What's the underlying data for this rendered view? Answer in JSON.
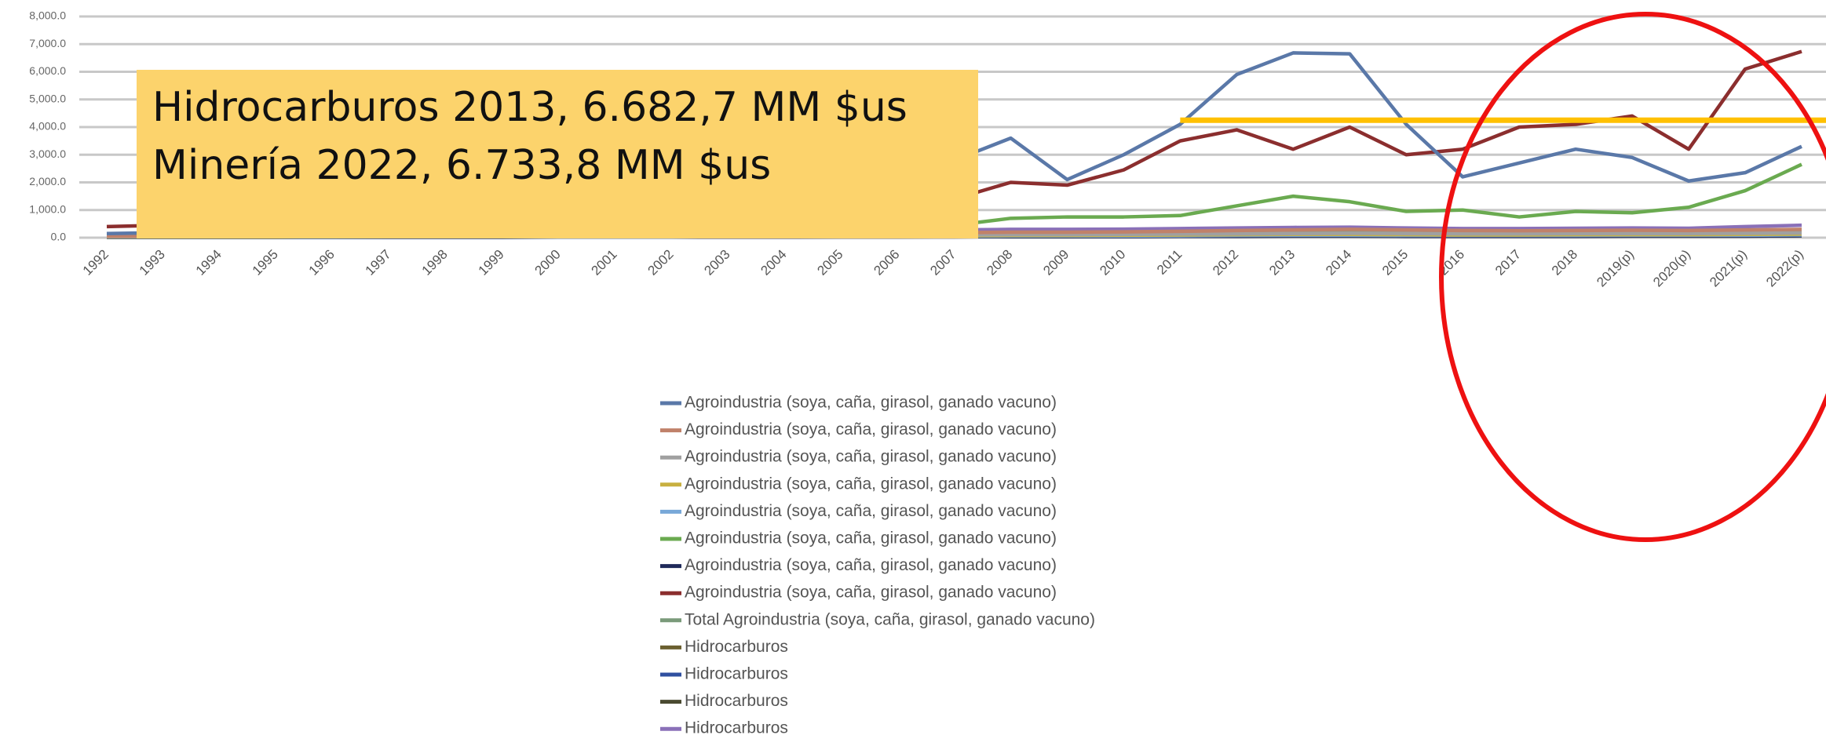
{
  "chart_data": {
    "type": "line",
    "annotations": [
      "Hidrocarburos 2013, 6.682,7  MM $us",
      "Minería 2022, 6.733,8  MM $us"
    ],
    "categories": [
      "1992",
      "1993",
      "1994",
      "1995",
      "1996",
      "1997",
      "1998",
      "1999",
      "2000",
      "2001",
      "2002",
      "2003",
      "2004",
      "2005",
      "2006",
      "2007",
      "2008",
      "2009",
      "2010",
      "2011",
      "2012",
      "2013",
      "2014",
      "2015",
      "2016",
      "2017",
      "2018",
      "2019(p)",
      "2020(p)",
      "2021(p)",
      "2022(p)"
    ],
    "ylim": [
      0,
      8000
    ],
    "yticks": [
      {
        "value": 0,
        "label": "0.0"
      },
      {
        "value": 1000,
        "label": "1,000.0"
      },
      {
        "value": 2000,
        "label": "2,000.0"
      },
      {
        "value": 3000,
        "label": "3,000.0"
      },
      {
        "value": 4000,
        "label": "4,000.0"
      },
      {
        "value": 5000,
        "label": "5,000.0"
      },
      {
        "value": 6000,
        "label": "6,000.0"
      },
      {
        "value": 7000,
        "label": "7,000.0"
      },
      {
        "value": 8000,
        "label": "8,000.0"
      }
    ],
    "grid": true,
    "reference_line": {
      "value": 4250,
      "color": "#ffc000"
    },
    "series": [
      {
        "name": "Agroindustria (soya, caña, girasol, ganado vacuno)",
        "color": "#5a78a8",
        "values": [
          150,
          180,
          200,
          220,
          250,
          260,
          280,
          270,
          300,
          320,
          350,
          500,
          800,
          1400,
          2000,
          2800,
          3600,
          2100,
          3000,
          4100,
          5900,
          6683,
          6650,
          4100,
          2200,
          2700,
          3200,
          2900,
          2050,
          2350,
          3300
        ]
      },
      {
        "name": "Agroindustria (soya, caña, girasol, ganado vacuno)",
        "color": "#c0816a",
        "values": [
          60,
          60,
          70,
          70,
          80,
          80,
          80,
          80,
          90,
          90,
          100,
          110,
          120,
          140,
          160,
          180,
          200,
          200,
          210,
          230,
          260,
          280,
          300,
          280,
          260,
          250,
          260,
          270,
          260,
          280,
          300
        ]
      },
      {
        "name": "Agroindustria (soya, caña, girasol, ganado vacuno)",
        "color": "#a0a0a0",
        "values": [
          40,
          40,
          40,
          50,
          50,
          50,
          50,
          50,
          60,
          60,
          60,
          70,
          70,
          80,
          90,
          100,
          110,
          110,
          120,
          130,
          140,
          150,
          160,
          150,
          140,
          140,
          150,
          150,
          150,
          160,
          170
        ]
      },
      {
        "name": "Agroindustria (soya, caña, girasol, ganado vacuno)",
        "color": "#c8b040",
        "values": [
          30,
          30,
          30,
          30,
          40,
          40,
          40,
          40,
          40,
          40,
          50,
          50,
          50,
          60,
          60,
          70,
          80,
          80,
          90,
          100,
          110,
          120,
          120,
          110,
          100,
          100,
          110,
          110,
          110,
          120,
          130
        ]
      },
      {
        "name": "Agroindustria (soya, caña, girasol, ganado vacuno)",
        "color": "#78a8d8",
        "values": [
          20,
          20,
          20,
          20,
          20,
          30,
          30,
          30,
          30,
          30,
          30,
          40,
          40,
          40,
          50,
          50,
          60,
          60,
          60,
          70,
          80,
          90,
          90,
          80,
          80,
          80,
          80,
          90,
          90,
          90,
          100
        ]
      },
      {
        "name": "Agroindustria (soya, caña, girasol, ganado vacuno)",
        "color": "#6aaa50",
        "values": [
          100,
          110,
          120,
          130,
          140,
          150,
          150,
          150,
          160,
          170,
          180,
          200,
          250,
          300,
          400,
          450,
          700,
          750,
          750,
          800,
          1150,
          1500,
          1300,
          950,
          1000,
          750,
          950,
          900,
          1100,
          1700,
          2650
        ]
      },
      {
        "name": "Agroindustria (soya, caña, girasol, ganado vacuno)",
        "color": "#1f2a5a",
        "values": [
          10,
          10,
          10,
          10,
          10,
          10,
          10,
          10,
          20,
          20,
          20,
          20,
          20,
          30,
          30,
          30,
          40,
          40,
          40,
          50,
          50,
          60,
          60,
          50,
          50,
          50,
          50,
          60,
          60,
          60,
          70
        ]
      },
      {
        "name": "Agroindustria (soya, caña, girasol, ganado vacuno)",
        "color": "#8b2e2e",
        "values": [
          400,
          450,
          550,
          550,
          500,
          500,
          430,
          400,
          420,
          350,
          350,
          400,
          450,
          550,
          1050,
          1400,
          2000,
          1900,
          2450,
          3500,
          3900,
          3200,
          4000,
          3000,
          3200,
          4000,
          4100,
          4400,
          3200,
          6100,
          6734
        ]
      },
      {
        "name": "Total Agroindustria (soya, caña, girasol, ganado vacuno)",
        "color": "#7a9a7a",
        "values": [
          50,
          50,
          60,
          60,
          60,
          70,
          70,
          70,
          80,
          80,
          90,
          100,
          110,
          120,
          130,
          150,
          170,
          170,
          180,
          200,
          220,
          240,
          250,
          230,
          220,
          220,
          230,
          240,
          240,
          260,
          280
        ]
      },
      {
        "name": "Hidrocarburos",
        "color": "#6b6030",
        "values": [
          20,
          20,
          20,
          20,
          30,
          30,
          30,
          30,
          30,
          30,
          40,
          40,
          40,
          50,
          50,
          60,
          70,
          70,
          70,
          80,
          90,
          100,
          100,
          90,
          90,
          90,
          90,
          100,
          100,
          100,
          110
        ]
      },
      {
        "name": "Hidrocarburos",
        "color": "#3050a0",
        "values": [
          30,
          30,
          30,
          30,
          30,
          40,
          40,
          40,
          40,
          40,
          50,
          50,
          60,
          60,
          70,
          80,
          90,
          90,
          100,
          110,
          120,
          130,
          130,
          120,
          110,
          110,
          120,
          120,
          120,
          130,
          140
        ]
      },
      {
        "name": "Hidrocarburos",
        "color": "#4a4a30",
        "values": [
          10,
          10,
          10,
          10,
          10,
          20,
          20,
          20,
          20,
          20,
          20,
          30,
          30,
          30,
          30,
          40,
          40,
          40,
          50,
          50,
          60,
          60,
          60,
          60,
          50,
          50,
          60,
          60,
          60,
          60,
          70
        ]
      },
      {
        "name": "Hidrocarburos",
        "color": "#8a70b8",
        "values": [
          100,
          110,
          120,
          130,
          140,
          150,
          160,
          160,
          170,
          180,
          190,
          200,
          220,
          240,
          260,
          280,
          300,
          300,
          310,
          330,
          350,
          370,
          380,
          350,
          330,
          330,
          340,
          350,
          340,
          400,
          450
        ]
      }
    ]
  }
}
